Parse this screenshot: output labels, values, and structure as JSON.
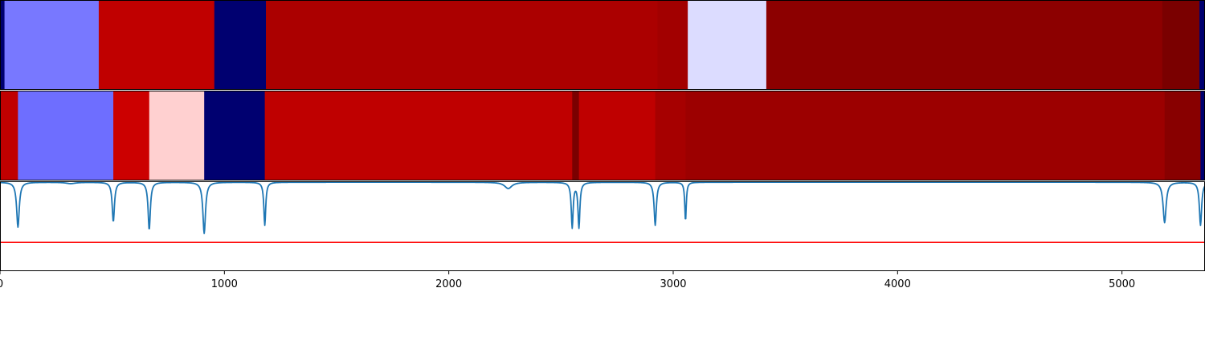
{
  "chart_data": [
    {
      "type": "heatmap",
      "name": "segmentation-track-1",
      "xlim": [
        0,
        5370
      ],
      "segments": [
        {
          "start": 0,
          "end": 20,
          "color": "#00006e"
        },
        {
          "start": 20,
          "end": 440,
          "color": "#7878ff"
        },
        {
          "start": 440,
          "end": 955,
          "color": "#c00000"
        },
        {
          "start": 955,
          "end": 1185,
          "color": "#000070"
        },
        {
          "start": 1185,
          "end": 2930,
          "color": "#ab0000"
        },
        {
          "start": 2930,
          "end": 3065,
          "color": "#a20000"
        },
        {
          "start": 3065,
          "end": 3415,
          "color": "#dcdcff"
        },
        {
          "start": 3415,
          "end": 5180,
          "color": "#8c0000"
        },
        {
          "start": 5180,
          "end": 5345,
          "color": "#7a0000"
        },
        {
          "start": 5345,
          "end": 5370,
          "color": "#000070"
        }
      ]
    },
    {
      "type": "heatmap",
      "name": "segmentation-track-2",
      "xlim": [
        0,
        5370
      ],
      "segments": [
        {
          "start": 0,
          "end": 80,
          "color": "#c00000"
        },
        {
          "start": 80,
          "end": 505,
          "color": "#6e6eff"
        },
        {
          "start": 505,
          "end": 665,
          "color": "#cc0000"
        },
        {
          "start": 665,
          "end": 910,
          "color": "#ffd0d0"
        },
        {
          "start": 910,
          "end": 1180,
          "color": "#000070"
        },
        {
          "start": 1180,
          "end": 2550,
          "color": "#bf0000"
        },
        {
          "start": 2550,
          "end": 2580,
          "color": "#7a0000"
        },
        {
          "start": 2580,
          "end": 2920,
          "color": "#bf0000"
        },
        {
          "start": 2920,
          "end": 3055,
          "color": "#a60000"
        },
        {
          "start": 3055,
          "end": 5190,
          "color": "#9c0000"
        },
        {
          "start": 5190,
          "end": 5350,
          "color": "#880000"
        },
        {
          "start": 5350,
          "end": 5370,
          "color": "#000070"
        }
      ]
    },
    {
      "type": "line",
      "name": "signal-track",
      "xlim": [
        0,
        5370
      ],
      "ylim": [
        0,
        1
      ],
      "baseline": 0.99,
      "threshold": 0.32,
      "series_color": "#1f77b4",
      "threshold_color": "#ff0000",
      "dips": [
        {
          "x": 80,
          "depth": 0.5,
          "width": 7
        },
        {
          "x": 315,
          "depth": 0.015,
          "width": 25
        },
        {
          "x": 505,
          "depth": 0.44,
          "width": 6
        },
        {
          "x": 665,
          "depth": 0.53,
          "width": 6
        },
        {
          "x": 910,
          "depth": 0.57,
          "width": 7
        },
        {
          "x": 1180,
          "depth": 0.48,
          "width": 5
        },
        {
          "x": 2265,
          "depth": 0.07,
          "width": 20
        },
        {
          "x": 2550,
          "depth": 0.5,
          "width": 5
        },
        {
          "x": 2580,
          "depth": 0.5,
          "width": 5
        },
        {
          "x": 2920,
          "depth": 0.48,
          "width": 6
        },
        {
          "x": 3055,
          "depth": 0.43,
          "width": 4
        },
        {
          "x": 5190,
          "depth": 0.45,
          "width": 8
        },
        {
          "x": 5350,
          "depth": 0.48,
          "width": 6
        }
      ],
      "xticks": [
        0,
        1000,
        2000,
        3000,
        4000,
        5000
      ],
      "xtick_labels": [
        "0",
        "1000",
        "2000",
        "3000",
        "4000",
        "5000"
      ]
    }
  ]
}
